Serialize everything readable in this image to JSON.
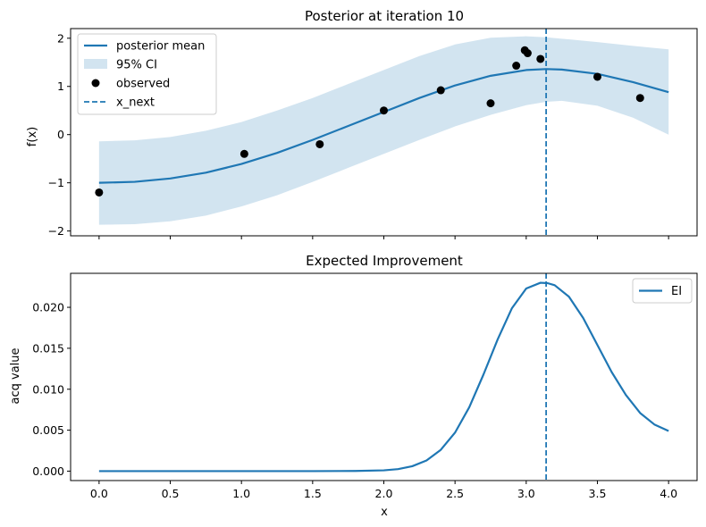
{
  "chart_data": [
    {
      "type": "line",
      "title": "Posterior at iteration 10",
      "xlabel": "",
      "ylabel": "f(x)",
      "xlim": [
        -0.2,
        4.2
      ],
      "ylim": [
        -2.1,
        2.2
      ],
      "x_ticks": [
        0,
        0.5,
        1,
        1.5,
        2,
        2.5,
        3,
        3.5,
        4
      ],
      "y_ticks": [
        -2,
        -1,
        0,
        1,
        2
      ],
      "y_tick_labels": [
        "−2",
        "−1",
        "0",
        "1",
        "2"
      ],
      "grid": false,
      "legend_position": "top-left",
      "series": [
        {
          "name": "posterior mean",
          "kind": "line",
          "color": "#1f77b4",
          "x": [
            0,
            0.25,
            0.5,
            0.75,
            1.0,
            1.25,
            1.5,
            1.75,
            2.0,
            2.25,
            2.5,
            2.75,
            3.0,
            3.14,
            3.25,
            3.5,
            3.75,
            4.0
          ],
          "y": [
            -1.0,
            -0.98,
            -0.91,
            -0.79,
            -0.61,
            -0.38,
            -0.11,
            0.18,
            0.47,
            0.76,
            1.02,
            1.22,
            1.34,
            1.36,
            1.35,
            1.26,
            1.09,
            0.88
          ]
        },
        {
          "name": "95% CI",
          "kind": "band",
          "color": "#1f77b4",
          "x": [
            0,
            0.25,
            0.5,
            0.75,
            1.0,
            1.25,
            1.5,
            1.75,
            2.0,
            2.25,
            2.5,
            2.75,
            3.0,
            3.14,
            3.25,
            3.5,
            3.75,
            4.0
          ],
          "lower": [
            -1.87,
            -1.86,
            -1.8,
            -1.68,
            -1.49,
            -1.26,
            -0.98,
            -0.69,
            -0.4,
            -0.11,
            0.17,
            0.41,
            0.61,
            0.68,
            0.7,
            0.6,
            0.35,
            0.0
          ],
          "upper": [
            -0.14,
            -0.12,
            -0.05,
            0.08,
            0.26,
            0.5,
            0.76,
            1.05,
            1.34,
            1.63,
            1.87,
            2.01,
            2.04,
            2.02,
            1.99,
            1.92,
            1.84,
            1.77
          ]
        },
        {
          "name": "observed",
          "kind": "scatter",
          "color": "#000000",
          "x": [
            0.0,
            1.02,
            1.55,
            2.0,
            2.4,
            2.75,
            2.93,
            2.99,
            3.01,
            3.1,
            3.5,
            3.8
          ],
          "y": [
            -1.2,
            -0.4,
            -0.2,
            0.5,
            0.92,
            0.65,
            1.43,
            1.75,
            1.69,
            1.57,
            1.2,
            0.76
          ]
        },
        {
          "name": "x_next",
          "kind": "vline",
          "color": "#1f77b4",
          "x": 3.14
        }
      ]
    },
    {
      "type": "line",
      "title": "Expected Improvement",
      "xlabel": "x",
      "ylabel": "acq value",
      "xlim": [
        -0.2,
        4.2
      ],
      "ylim": [
        -0.00115,
        0.02415
      ],
      "x_ticks": [
        0,
        0.5,
        1,
        1.5,
        2,
        2.5,
        3,
        3.5,
        4
      ],
      "x_tick_labels": [
        "0.0",
        "0.5",
        "1.0",
        "1.5",
        "2.0",
        "2.5",
        "3.0",
        "3.5",
        "4.0"
      ],
      "y_ticks": [
        0,
        0.005,
        0.01,
        0.015,
        0.02
      ],
      "y_tick_labels": [
        "0.000",
        "0.005",
        "0.010",
        "0.015",
        "0.020"
      ],
      "grid": false,
      "legend_position": "top-right",
      "series": [
        {
          "name": "EI",
          "kind": "line",
          "color": "#1f77b4",
          "x": [
            0,
            0.5,
            1.0,
            1.5,
            1.8,
            2.0,
            2.1,
            2.2,
            2.3,
            2.4,
            2.5,
            2.6,
            2.7,
            2.8,
            2.9,
            3.0,
            3.1,
            3.15,
            3.2,
            3.3,
            3.4,
            3.5,
            3.6,
            3.7,
            3.8,
            3.9,
            4.0
          ],
          "y": [
            0,
            0,
            0,
            0,
            2e-05,
            0.0001,
            0.00025,
            0.0006,
            0.0013,
            0.0026,
            0.0047,
            0.0078,
            0.0118,
            0.0161,
            0.0199,
            0.0223,
            0.023,
            0.02295,
            0.0227,
            0.0213,
            0.0187,
            0.0154,
            0.0121,
            0.0093,
            0.0071,
            0.0057,
            0.0049
          ]
        },
        {
          "name": "x_next",
          "kind": "vline",
          "color": "#1f77b4",
          "x": 3.14
        }
      ]
    }
  ]
}
